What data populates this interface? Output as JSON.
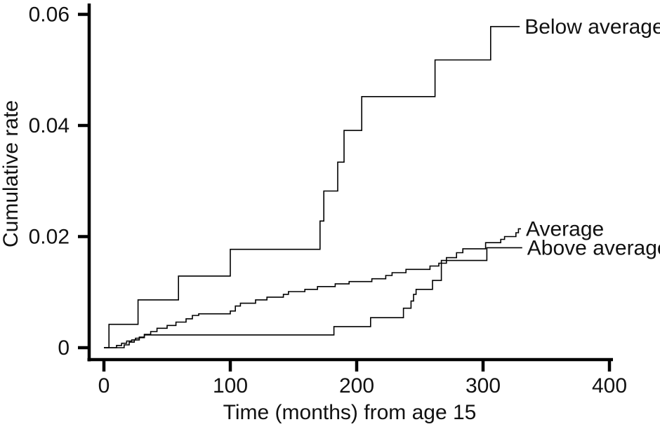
{
  "figure": {
    "background": "#ffffff",
    "line_color": "#000000",
    "text_color": "#111111"
  },
  "chart_data": {
    "type": "line",
    "subtype": "step-cumulative-incidence",
    "title": "",
    "xlabel": "Time (months) from age 15",
    "ylabel": "Cumulative rate",
    "xlim": [
      0,
      400
    ],
    "ylim": [
      0,
      0.06
    ],
    "x_ticks": [
      0,
      100,
      200,
      300,
      400
    ],
    "x_tick_labels": [
      "0",
      "100",
      "200",
      "300",
      "400"
    ],
    "y_ticks": [
      0,
      0.02,
      0.04,
      0.06
    ],
    "y_tick_labels": [
      "0",
      "0.02",
      "0.04",
      "0.06"
    ],
    "grid": false,
    "legend_position": "curve-end-labels-right",
    "series": [
      {
        "name": "Below average",
        "end_month": 329,
        "points": [
          [
            4,
            0.0042
          ],
          [
            27,
            0.0086
          ],
          [
            59,
            0.0129
          ],
          [
            100,
            0.0177
          ],
          [
            171,
            0.0228
          ],
          [
            174,
            0.0282
          ],
          [
            185,
            0.0334
          ],
          [
            190,
            0.0391
          ],
          [
            204,
            0.0452
          ],
          [
            262,
            0.0518
          ],
          [
            306,
            0.0578
          ]
        ]
      },
      {
        "name": "Average",
        "end_month": 330,
        "points": [
          [
            10,
            0.0004
          ],
          [
            14,
            0.0008
          ],
          [
            18,
            0.0012
          ],
          [
            22,
            0.0014
          ],
          [
            25,
            0.0017
          ],
          [
            28,
            0.0019
          ],
          [
            32,
            0.0024
          ],
          [
            37,
            0.0029
          ],
          [
            42,
            0.0035
          ],
          [
            50,
            0.004
          ],
          [
            57,
            0.0046
          ],
          [
            65,
            0.0052
          ],
          [
            70,
            0.0058
          ],
          [
            75,
            0.0061
          ],
          [
            100,
            0.0066
          ],
          [
            104,
            0.0075
          ],
          [
            108,
            0.008
          ],
          [
            120,
            0.0086
          ],
          [
            129,
            0.0091
          ],
          [
            142,
            0.0096
          ],
          [
            146,
            0.0101
          ],
          [
            159,
            0.0105
          ],
          [
            169,
            0.011
          ],
          [
            183,
            0.0115
          ],
          [
            194,
            0.0119
          ],
          [
            212,
            0.0124
          ],
          [
            223,
            0.013
          ],
          [
            228,
            0.0135
          ],
          [
            239,
            0.0141
          ],
          [
            258,
            0.0147
          ],
          [
            265,
            0.0152
          ],
          [
            271,
            0.0162
          ],
          [
            279,
            0.0171
          ],
          [
            284,
            0.0178
          ],
          [
            302,
            0.0189
          ],
          [
            314,
            0.0195
          ],
          [
            317,
            0.02
          ],
          [
            326,
            0.0207
          ],
          [
            328,
            0.0214
          ]
        ]
      },
      {
        "name": "Above average",
        "end_month": 331,
        "points": [
          [
            16,
            0.0005
          ],
          [
            20,
            0.001
          ],
          [
            24,
            0.0014
          ],
          [
            28,
            0.0018
          ],
          [
            32,
            0.0023
          ],
          [
            182,
            0.0038
          ],
          [
            211,
            0.0054
          ],
          [
            237,
            0.0071
          ],
          [
            243,
            0.0084
          ],
          [
            245,
            0.0096
          ],
          [
            247,
            0.0105
          ],
          [
            260,
            0.0121
          ],
          [
            267,
            0.0157
          ],
          [
            303,
            0.018
          ]
        ]
      }
    ]
  }
}
